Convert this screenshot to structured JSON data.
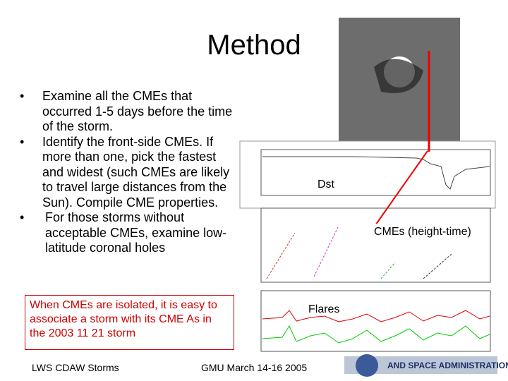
{
  "slide": {
    "title": "Method",
    "bullets": [
      "Examine all the CMEs that occurred 1-5 days before the time of the storm.",
      "Identify the front-side CMEs. If more than one, pick the fastest and widest (such CMEs are likely to travel large distances from the Sun). Compile CME properties.",
      "For those storms without acceptable CMEs, examine low-latitude coronal holes"
    ],
    "note": "When CMEs are isolated, it is easy to associate a storm with its CME As in the 2003 11 21 storm",
    "figure_labels": {
      "dst": "Dst",
      "cmes": "CMEs (height-time)",
      "flares": "Flares"
    },
    "footer": {
      "left": "LWS CDAW Storms",
      "center": "GMU March 14-16 2005",
      "logo": "AND SPACE ADMINISTRATION"
    }
  }
}
